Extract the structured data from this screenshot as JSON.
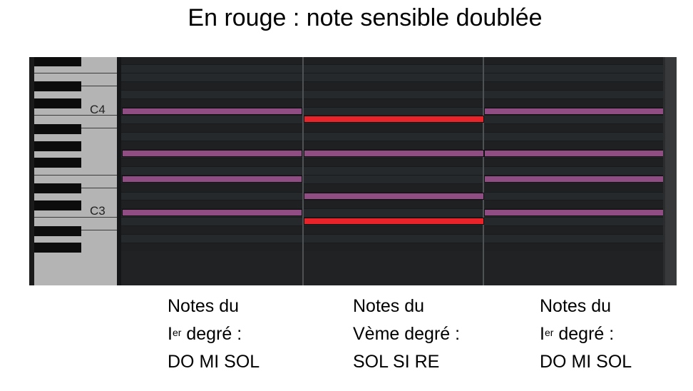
{
  "title": "En rouge : note sensible doublée",
  "keyboard": {
    "labels": [
      "C4",
      "C3"
    ]
  },
  "colors": {
    "note": "#8f4d84",
    "sensible": "#e8232a",
    "background": "#202224"
  },
  "chords": [
    {
      "notes": [
        "C4",
        "G3",
        "E3",
        "C3"
      ]
    },
    {
      "notes": [
        "B3",
        "G3",
        "D3",
        "B2"
      ],
      "doubled_leading_tone": [
        "B3",
        "B2"
      ]
    },
    {
      "notes": [
        "C4",
        "G3",
        "E3",
        "C3"
      ]
    }
  ],
  "captions": [
    {
      "l1": "Notes du",
      "l2_roman": "I",
      "l2_sup": "er",
      "l2_rest": " degré :",
      "l3": "DO MI SOL"
    },
    {
      "l1": "Notes du",
      "l2": "Vème degré :",
      "l3": "SOL SI RE"
    },
    {
      "l1": "Notes du",
      "l2_roman": "I",
      "l2_sup": "er",
      "l2_rest": " degré :",
      "l3": "DO MI SOL"
    }
  ]
}
